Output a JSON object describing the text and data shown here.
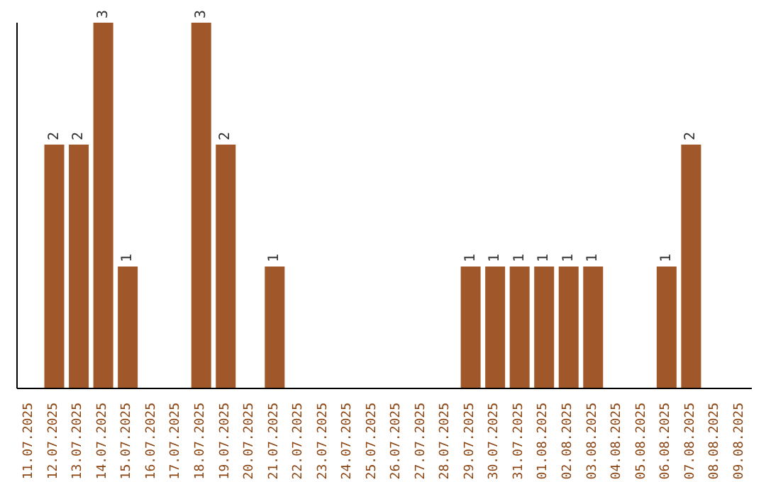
{
  "chart_data": {
    "type": "bar",
    "categories": [
      "11.07.2025",
      "12.07.2025",
      "13.07.2025",
      "14.07.2025",
      "15.07.2025",
      "16.07.2025",
      "17.07.2025",
      "18.07.2025",
      "19.07.2025",
      "20.07.2025",
      "21.07.2025",
      "22.07.2025",
      "23.07.2025",
      "24.07.2025",
      "25.07.2025",
      "26.07.2025",
      "27.07.2025",
      "28.07.2025",
      "29.07.2025",
      "30.07.2025",
      "31.07.2025",
      "01.08.2025",
      "02.08.2025",
      "03.08.2025",
      "04.08.2025",
      "05.08.2025",
      "06.08.2025",
      "07.08.2025",
      "08.08.2025",
      "09.08.2025"
    ],
    "values": [
      0,
      2,
      2,
      3,
      1,
      0,
      0,
      3,
      2,
      0,
      1,
      0,
      0,
      0,
      0,
      0,
      0,
      0,
      1,
      1,
      1,
      1,
      1,
      1,
      0,
      0,
      1,
      2,
      0,
      0
    ],
    "value_labels": [
      null,
      "2",
      "2",
      "3",
      "1",
      null,
      null,
      "3",
      "2",
      null,
      "1",
      null,
      null,
      null,
      null,
      null,
      null,
      null,
      "1",
      "1",
      "1",
      "1",
      "1",
      "1",
      null,
      null,
      "1",
      "2",
      null,
      null
    ],
    "color": "#a0582a"
  }
}
